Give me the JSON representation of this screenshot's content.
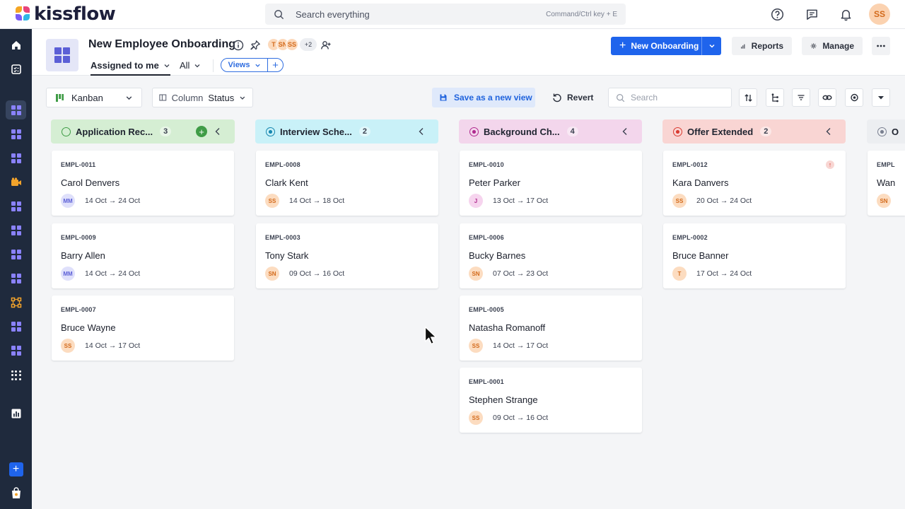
{
  "brand": {
    "name": "kissflow"
  },
  "search": {
    "placeholder": "Search everything",
    "shortcut": "Command/Ctrl key + E"
  },
  "user": {
    "initials": "SS"
  },
  "app": {
    "title": "New Employee Onboarding",
    "members": [
      "T",
      "SN",
      "SS"
    ],
    "members_more": "+2",
    "filters": {
      "assigned": "Assigned to me",
      "all": "All"
    },
    "views_label": "Views",
    "primary_action": "New Onboarding",
    "reports": "Reports",
    "manage": "Manage"
  },
  "toolbar": {
    "layout": "Kanban",
    "column_label": "Column",
    "column_value": "Status",
    "save_view": "Save as a new view",
    "revert": "Revert",
    "search_placeholder": "Search"
  },
  "colors": {
    "accent": "#1f64ec",
    "rail": "#1f2a3d",
    "application": "#d5eed3",
    "interview": "#c9f1f8",
    "background": "#f3d6ec",
    "offer": "#f9d5d3",
    "next": "#eceef1"
  },
  "columns": [
    {
      "title": "Application Rec...",
      "count": "3",
      "cards": [
        {
          "id": "EMPL-0011",
          "name": "Carol Denvers",
          "avatar": "MM",
          "dates": "14 Oct → 24 Oct"
        },
        {
          "id": "EMPL-0009",
          "name": "Barry Allen",
          "avatar": "MM",
          "dates": "14 Oct → 24 Oct"
        },
        {
          "id": "EMPL-0007",
          "name": "Bruce Wayne",
          "avatar": "SS",
          "dates": "14 Oct → 17 Oct"
        }
      ]
    },
    {
      "title": "Interview Sche...",
      "count": "2",
      "cards": [
        {
          "id": "EMPL-0008",
          "name": "Clark Kent",
          "avatar": "SS",
          "dates": "14 Oct → 18 Oct"
        },
        {
          "id": "EMPL-0003",
          "name": "Tony Stark",
          "avatar": "SN",
          "dates": "09 Oct → 16 Oct"
        }
      ]
    },
    {
      "title": "Background Ch...",
      "count": "4",
      "cards": [
        {
          "id": "EMPL-0010",
          "name": "Peter Parker",
          "avatar": "J",
          "dates": "13 Oct → 17 Oct"
        },
        {
          "id": "EMPL-0006",
          "name": "Bucky Barnes",
          "avatar": "SN",
          "dates": "07 Oct → 23 Oct"
        },
        {
          "id": "EMPL-0005",
          "name": "Natasha Romanoff",
          "avatar": "SS",
          "dates": "14 Oct → 17 Oct"
        },
        {
          "id": "EMPL-0001",
          "name": "Stephen Strange",
          "avatar": "SS",
          "dates": "09 Oct → 16 Oct"
        }
      ]
    },
    {
      "title": "Offer Extended",
      "count": "2",
      "cards": [
        {
          "id": "EMPL-0012",
          "name": "Kara Danvers",
          "avatar": "SS",
          "dates": "20 Oct → 24 Oct"
        },
        {
          "id": "EMPL-0002",
          "name": "Bruce Banner",
          "avatar": "T",
          "dates": "17 Oct → 24 Oct"
        }
      ]
    },
    {
      "title": "O",
      "cards": [
        {
          "id": "EMPL",
          "name": "Wan",
          "avatar": "SN"
        }
      ]
    }
  ]
}
